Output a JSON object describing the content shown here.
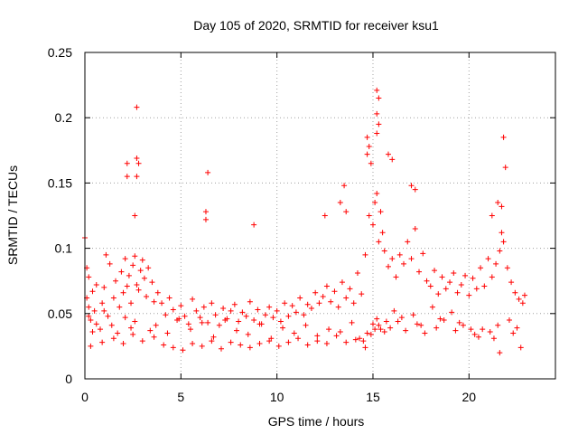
{
  "chart_data": {
    "type": "scatter",
    "title": "Day 105 of 2020, SRMTID for receiver ksu1",
    "xlabel": "GPS time / hours",
    "ylabel": "SRMTID / TECUs",
    "xlim": [
      0,
      24.5
    ],
    "ylim": [
      0,
      0.25
    ],
    "xticks": [
      0,
      5,
      10,
      15,
      20
    ],
    "yticks": [
      0,
      0.05,
      0.1,
      0.15,
      0.2,
      0.25
    ],
    "xtick_labels": [
      "0",
      "5",
      "10",
      "15",
      "20"
    ],
    "ytick_labels": [
      "0",
      "0.05",
      "0.1",
      "0.15",
      "0.2",
      "0.25"
    ],
    "grid": true,
    "marker": "+",
    "color": "#ff0000",
    "series": [
      {
        "name": "SRMTID",
        "x": [
          0.0,
          0.1,
          0.1,
          0.2,
          0.2,
          0.3,
          0.4,
          0.5,
          0.6,
          0.8,
          0.9,
          1.0,
          1.1,
          1.2,
          1.3,
          1.5,
          1.6,
          1.8,
          1.9,
          2.0,
          2.1,
          2.2,
          2.3,
          2.4,
          2.5,
          2.6,
          2.7,
          2.8,
          2.9,
          3.0,
          3.1,
          3.2,
          3.3,
          3.5,
          3.6,
          3.8,
          4.0,
          4.2,
          4.4,
          4.6,
          4.8,
          5.0,
          5.2,
          5.4,
          5.6,
          5.8,
          6.0,
          6.2,
          6.4,
          6.6,
          6.8,
          7.0,
          7.2,
          7.4,
          7.6,
          7.8,
          8.0,
          8.2,
          8.4,
          8.6,
          8.8,
          9.0,
          9.2,
          9.4,
          9.6,
          9.8,
          10.0,
          10.2,
          10.4,
          10.6,
          10.8,
          11.0,
          11.2,
          11.4,
          11.6,
          11.8,
          12.0,
          12.2,
          12.4,
          12.6,
          12.8,
          13.0,
          13.2,
          13.4,
          13.6,
          13.8,
          14.0,
          14.2,
          14.4,
          14.6,
          14.8,
          15.0,
          15.1,
          15.2,
          15.3,
          15.4,
          15.5,
          15.6,
          15.8,
          16.0,
          16.2,
          16.4,
          16.6,
          16.8,
          17.0,
          17.2,
          17.4,
          17.6,
          17.8,
          18.0,
          18.2,
          18.4,
          18.6,
          18.8,
          19.0,
          19.2,
          19.4,
          19.6,
          19.8,
          20.0,
          20.2,
          20.4,
          20.6,
          20.8,
          21.0,
          21.2,
          21.4,
          21.6,
          21.7,
          21.8,
          22.0,
          22.2,
          22.4,
          22.6,
          22.8,
          22.9,
          0.2,
          0.4,
          0.6,
          1.0,
          1.4,
          1.7,
          2.1,
          2.4,
          2.6,
          3.4,
          3.7,
          4.3,
          4.9,
          5.5,
          6.1,
          6.7,
          7.3,
          7.9,
          8.5,
          9.1,
          9.7,
          10.3,
          10.9,
          11.5,
          12.1,
          12.7,
          13.3,
          13.9,
          14.3,
          14.5,
          14.7,
          15.0,
          15.2,
          15.4,
          15.7,
          16.1,
          16.5,
          17.1,
          17.5,
          18.1,
          18.5,
          19.1,
          19.5,
          20.1,
          20.5,
          21.1,
          21.5,
          22.1,
          22.5,
          0.3,
          0.9,
          1.5,
          2.0,
          2.5,
          3.0,
          3.6,
          4.1,
          4.6,
          5.1,
          5.6,
          6.1,
          6.6,
          7.1,
          7.6,
          8.1,
          8.6,
          9.1,
          9.6,
          10.1,
          10.6,
          11.1,
          11.6,
          12.1,
          12.6,
          13.1,
          13.6,
          14.1,
          14.6,
          14.9,
          15.1,
          15.3,
          15.6,
          15.9,
          16.3,
          16.7,
          17.3,
          17.7,
          18.3,
          18.7,
          19.3,
          19.7,
          20.3,
          20.7,
          21.3,
          21.6,
          22.3,
          22.7,
          2.7,
          2.7,
          2.8,
          2.7,
          2.6,
          2.2,
          2.2,
          15.2,
          15.3,
          15.2,
          15.3,
          15.2,
          14.7,
          14.8,
          14.7,
          14.9,
          12.5,
          13.6,
          15.8,
          16.0,
          17.0,
          17.2,
          21.8,
          21.9,
          21.7,
          21.5,
          21.2,
          6.4,
          6.3,
          6.3,
          8.8,
          13.5,
          13.3
        ],
        "y": [
          0.108,
          0.062,
          0.085,
          0.055,
          0.078,
          0.045,
          0.067,
          0.052,
          0.072,
          0.038,
          0.058,
          0.07,
          0.095,
          0.048,
          0.088,
          0.062,
          0.075,
          0.055,
          0.082,
          0.066,
          0.092,
          0.071,
          0.079,
          0.058,
          0.087,
          0.094,
          0.072,
          0.068,
          0.083,
          0.091,
          0.077,
          0.063,
          0.085,
          0.074,
          0.059,
          0.066,
          0.058,
          0.049,
          0.062,
          0.053,
          0.045,
          0.056,
          0.048,
          0.042,
          0.061,
          0.052,
          0.047,
          0.055,
          0.043,
          0.058,
          0.049,
          0.041,
          0.054,
          0.046,
          0.052,
          0.057,
          0.044,
          0.051,
          0.048,
          0.059,
          0.045,
          0.053,
          0.042,
          0.049,
          0.055,
          0.047,
          0.052,
          0.044,
          0.058,
          0.048,
          0.056,
          0.051,
          0.062,
          0.049,
          0.057,
          0.054,
          0.066,
          0.058,
          0.063,
          0.071,
          0.059,
          0.067,
          0.055,
          0.074,
          0.062,
          0.069,
          0.058,
          0.081,
          0.065,
          0.095,
          0.125,
          0.118,
          0.135,
          0.142,
          0.105,
          0.128,
          0.112,
          0.098,
          0.086,
          0.092,
          0.078,
          0.095,
          0.088,
          0.105,
          0.092,
          0.115,
          0.082,
          0.096,
          0.075,
          0.071,
          0.083,
          0.065,
          0.078,
          0.069,
          0.074,
          0.081,
          0.066,
          0.072,
          0.079,
          0.064,
          0.077,
          0.069,
          0.085,
          0.071,
          0.092,
          0.078,
          0.088,
          0.098,
          0.112,
          0.105,
          0.085,
          0.074,
          0.066,
          0.061,
          0.058,
          0.064,
          0.048,
          0.036,
          0.042,
          0.052,
          0.041,
          0.035,
          0.047,
          0.039,
          0.044,
          0.037,
          0.041,
          0.035,
          0.046,
          0.038,
          0.043,
          0.032,
          0.045,
          0.037,
          0.034,
          0.042,
          0.031,
          0.039,
          0.035,
          0.041,
          0.033,
          0.038,
          0.036,
          0.043,
          0.031,
          0.029,
          0.035,
          0.042,
          0.046,
          0.038,
          0.044,
          0.052,
          0.047,
          0.049,
          0.041,
          0.055,
          0.046,
          0.051,
          0.043,
          0.038,
          0.032,
          0.036,
          0.041,
          0.045,
          0.039,
          0.025,
          0.028,
          0.031,
          0.027,
          0.034,
          0.029,
          0.032,
          0.026,
          0.024,
          0.022,
          0.027,
          0.025,
          0.029,
          0.023,
          0.028,
          0.026,
          0.024,
          0.027,
          0.029,
          0.025,
          0.028,
          0.031,
          0.026,
          0.029,
          0.027,
          0.033,
          0.028,
          0.03,
          0.024,
          0.034,
          0.038,
          0.041,
          0.036,
          0.039,
          0.044,
          0.037,
          0.042,
          0.035,
          0.039,
          0.045,
          0.037,
          0.041,
          0.034,
          0.038,
          0.031,
          0.02,
          0.035,
          0.024,
          0.208,
          0.169,
          0.165,
          0.155,
          0.125,
          0.165,
          0.155,
          0.221,
          0.215,
          0.203,
          0.195,
          0.188,
          0.185,
          0.178,
          0.172,
          0.165,
          0.125,
          0.128,
          0.172,
          0.168,
          0.148,
          0.145,
          0.185,
          0.162,
          0.132,
          0.135,
          0.125,
          0.158,
          0.128,
          0.122,
          0.118,
          0.148,
          0.135
        ]
      }
    ]
  }
}
